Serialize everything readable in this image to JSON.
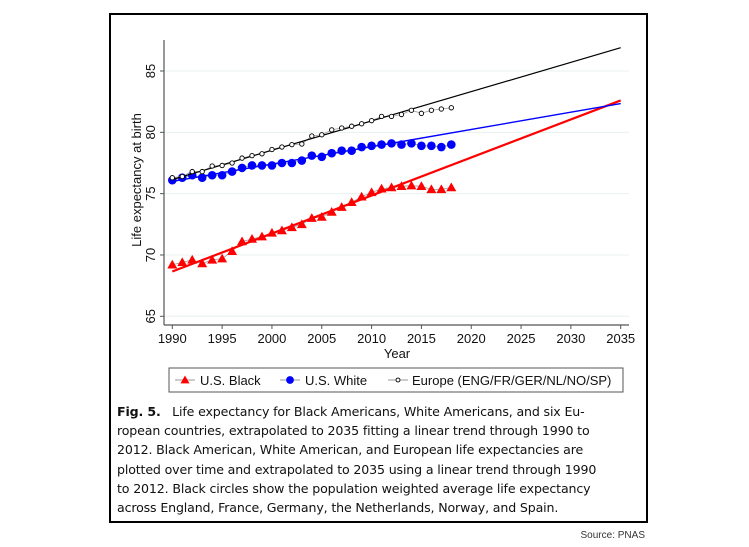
{
  "chart_data": {
    "type": "line",
    "xlabel": "Year",
    "ylabel": "Life expectancy at birth",
    "xlim": [
      1990,
      2035
    ],
    "ylim": [
      64.3,
      87.5
    ],
    "xticks": [
      1990,
      1995,
      2000,
      2005,
      2010,
      2015,
      2020,
      2025,
      2030,
      2035
    ],
    "yticks": [
      65,
      70,
      75,
      80,
      85
    ],
    "grid": "horizontal",
    "legend_placement": "bottom",
    "x": [
      1990,
      1991,
      1992,
      1993,
      1994,
      1995,
      1996,
      1997,
      1998,
      1999,
      2000,
      2001,
      2002,
      2003,
      2004,
      2005,
      2006,
      2007,
      2008,
      2009,
      2010,
      2011,
      2012,
      2013,
      2014,
      2015,
      2016,
      2017,
      2018
    ],
    "series": [
      {
        "name": "U.S. Black",
        "color": "#ff0000",
        "marker": "triangle",
        "values": [
          69.2,
          69.4,
          69.6,
          69.3,
          69.6,
          69.7,
          70.3,
          71.1,
          71.3,
          71.5,
          71.8,
          72.0,
          72.25,
          72.5,
          73.0,
          73.1,
          73.5,
          73.9,
          74.3,
          74.75,
          75.1,
          75.4,
          75.5,
          75.6,
          75.65,
          75.6,
          75.35,
          75.35,
          75.5
        ],
        "trend": {
          "x": [
            1990,
            2035
          ],
          "y": [
            68.65,
            82.6
          ]
        }
      },
      {
        "name": "U.S. White",
        "color": "#0000ff",
        "marker": "filled-circle",
        "values": [
          76.1,
          76.3,
          76.5,
          76.3,
          76.5,
          76.5,
          76.8,
          77.1,
          77.3,
          77.3,
          77.3,
          77.5,
          77.5,
          77.7,
          78.1,
          78.0,
          78.3,
          78.5,
          78.5,
          78.8,
          78.9,
          79.0,
          79.1,
          79.0,
          79.1,
          78.9,
          78.9,
          78.8,
          79.0
        ],
        "trend": {
          "x": [
            1990,
            2035
          ],
          "y": [
            76.0,
            82.35
          ]
        }
      },
      {
        "name": "Europe (ENG/FR/GER/NL/NO/SP)",
        "color": "#000000",
        "marker": "hollow-circle",
        "values": [
          76.3,
          76.4,
          76.8,
          76.8,
          77.25,
          77.3,
          77.5,
          77.9,
          78.1,
          78.25,
          78.6,
          78.8,
          79.0,
          79.05,
          79.7,
          79.8,
          80.2,
          80.35,
          80.5,
          80.7,
          80.95,
          81.3,
          81.3,
          81.45,
          81.8,
          81.55,
          81.8,
          81.9,
          82.0
        ],
        "trend": {
          "x": [
            1990,
            2035
          ],
          "y": [
            76.15,
            86.9
          ]
        }
      }
    ]
  },
  "caption": {
    "label": "Fig. 5.",
    "lines": [
      "Life expectancy for Black Americans, White Americans, and six Eu-",
      "ropean countries, extrapolated to 2035 fitting a linear trend through 1990 to",
      "2012. Black American, White American, and European life expectancies are",
      "plotted over time and extrapolated to 2035 using a linear trend through 1990",
      "to 2012. Black circles show the population weighted average life expectancy",
      "across England, France, Germany, the Netherlands, Norway, and Spain."
    ]
  },
  "source": "Source: PNAS"
}
